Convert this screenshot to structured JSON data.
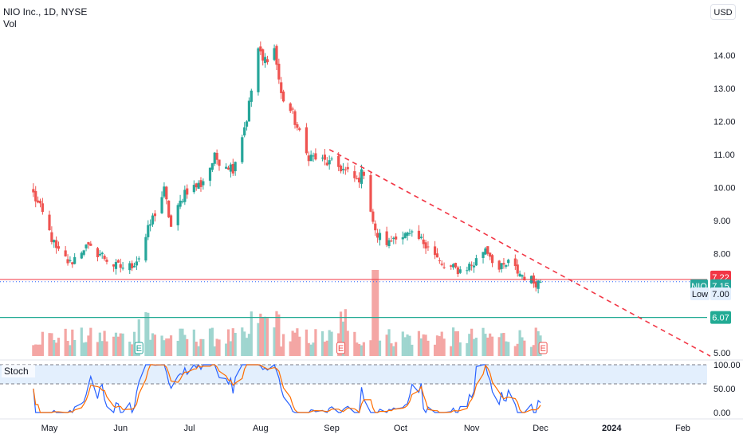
{
  "header": {
    "symbol_title": "NIO Inc., 1D, NYSE",
    "volume_label": "Vol"
  },
  "currency_label": "USD",
  "colors": {
    "up": "#26a69a",
    "down": "#ef5350",
    "vol_up": "#9fd5cf",
    "vol_down": "#f4a6a4",
    "trend": "#f23645",
    "support": "#22ab94",
    "stoch_k": "#2962ff",
    "stoch_d": "#ff6d00",
    "stoch_band": "#e3effd"
  },
  "chart_data": {
    "type": "candlestick",
    "y_ticks": [
      "14.00",
      "13.00",
      "12.00",
      "11.00",
      "10.00",
      "9.00",
      "8.00",
      "5.00"
    ],
    "x_ticks": [
      {
        "label": "May",
        "date": "2023-05-01",
        "bold": false
      },
      {
        "label": "Jun",
        "date": "2023-06-01",
        "bold": false
      },
      {
        "label": "Jul",
        "date": "2023-07-01",
        "bold": false
      },
      {
        "label": "Aug",
        "date": "2023-08-01",
        "bold": false
      },
      {
        "label": "Sep",
        "date": "2023-09-01",
        "bold": false
      },
      {
        "label": "Oct",
        "date": "2023-10-01",
        "bold": false
      },
      {
        "label": "Nov",
        "date": "2023-11-01",
        "bold": false
      },
      {
        "label": "Dec",
        "date": "2023-12-01",
        "bold": false
      },
      {
        "label": "2024",
        "date": "2024-01-01",
        "bold": true
      },
      {
        "label": "Feb",
        "date": "2024-02-01",
        "bold": false
      }
    ],
    "price_range": [
      4.9,
      15.05
    ],
    "waypoints": [
      [
        "2023-04-24",
        9.8
      ],
      [
        "2023-04-28",
        9.2
      ],
      [
        "2023-05-04",
        8.1
      ],
      [
        "2023-05-10",
        7.7
      ],
      [
        "2023-05-16",
        8.2
      ],
      [
        "2023-05-23",
        8.0
      ],
      [
        "2023-05-30",
        7.6
      ],
      [
        "2023-06-05",
        7.6
      ],
      [
        "2023-06-09",
        7.9
      ],
      [
        "2023-06-14",
        8.9
      ],
      [
        "2023-06-20",
        9.9
      ],
      [
        "2023-06-23",
        8.8
      ],
      [
        "2023-06-29",
        9.9
      ],
      [
        "2023-07-06",
        10.1
      ],
      [
        "2023-07-12",
        10.9
      ],
      [
        "2023-07-20",
        10.6
      ],
      [
        "2023-07-26",
        12.1
      ],
      [
        "2023-07-31",
        14.2
      ],
      [
        "2023-08-02",
        13.8
      ],
      [
        "2023-08-07",
        14.2
      ],
      [
        "2023-08-10",
        12.8
      ],
      [
        "2023-08-15",
        12.2
      ],
      [
        "2023-08-21",
        11.0
      ],
      [
        "2023-08-28",
        10.8
      ],
      [
        "2023-09-05",
        10.6
      ],
      [
        "2023-09-12",
        10.2
      ],
      [
        "2023-09-15",
        10.5
      ],
      [
        "2023-09-20",
        8.6
      ],
      [
        "2023-09-26",
        8.3
      ],
      [
        "2023-09-29",
        8.6
      ],
      [
        "2023-10-06",
        8.5
      ],
      [
        "2023-10-13",
        8.3
      ],
      [
        "2023-10-19",
        7.6
      ],
      [
        "2023-10-27",
        7.5
      ],
      [
        "2023-11-02",
        7.7
      ],
      [
        "2023-11-07",
        8.2
      ],
      [
        "2023-11-13",
        7.5
      ],
      [
        "2023-11-17",
        7.7
      ],
      [
        "2023-11-22",
        7.4
      ],
      [
        "2023-11-28",
        7.15
      ],
      [
        "2023-12-01",
        7.15
      ]
    ],
    "series": [
      {
        "name": "Vol"
      }
    ],
    "stoch_ticks": [
      "100.00",
      "50.00",
      "0.00"
    ],
    "trendline": {
      "start": [
        "2023-08-31",
        11.15
      ],
      "end": [
        "2024-02-13",
        4.9
      ]
    },
    "support_line": 6.07,
    "resistance_line": 7.22,
    "earnings_dates": [
      "2023-06-09",
      "2023-09-05",
      "2023-11-30"
    ],
    "labels": {
      "last_price_red": "7.22",
      "symbol": "NIO",
      "price": "7.15",
      "low_label": "Low",
      "low_value": "7.00",
      "support": "6.07",
      "stoch_label": "Stoch",
      "earnings_letter": "E"
    }
  }
}
